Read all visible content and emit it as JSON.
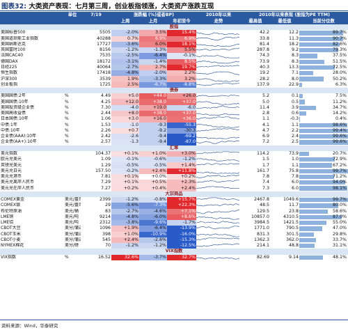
{
  "title": {
    "fig": "图表32:",
    "text": "大类资产表现：七月第三周，创业板指领涨，大类资产涨跌互现"
  },
  "header": {
    "unit": "单位",
    "date": "7/19",
    "chg_group": "涨跌幅 (%)或者BP)",
    "range_group": "2010年以来",
    "val_group": "2010年以来表现 (股指为PE TTM)",
    "last_week": "上周",
    "last_month": "上月",
    "ytd": "年初至今",
    "trend": "走势",
    "high": "最高值",
    "low": "最低值",
    "pct": "当前分位数"
  },
  "sections": [
    {
      "title": "股指",
      "rows": [
        {
          "name": "美国标普500",
          "unit": "",
          "value": "5505",
          "w": "-2.0%",
          "m": "3.5%",
          "y": "15.4%",
          "hi": "42.2",
          "lo": "12.2",
          "pct": "89.7%"
        },
        {
          "name": "美国道琼斯工业指数",
          "unit": "",
          "value": "40288",
          "w": "0.7%",
          "m": "6.9%",
          "y": "6.9%",
          "hi": "33.8",
          "lo": "11.3",
          "pct": "90.7%"
        },
        {
          "name": "美国纳斯达克",
          "unit": "",
          "value": "17727",
          "w": "-3.6%",
          "m": "6.0%",
          "y": "18.1%",
          "hi": "81.4",
          "lo": "18.2",
          "pct": "82.6%"
        },
        {
          "name": "英国富时100",
          "unit": "",
          "value": "8156",
          "y": "5.5%",
          "w": "-1.2%",
          "m": "-1.3%",
          "hi": "287.8",
          "lo": "9.2",
          "pct": "79.3%"
        },
        {
          "name": "法国CAC40",
          "unit": "",
          "value": "7535",
          "w": "-2.5%",
          "m": "-6.4%",
          "y": "-0.1%",
          "hi": "74.3",
          "lo": "8.3",
          "pct": "37.5%"
        },
        {
          "name": "德国DAX",
          "unit": "",
          "value": "18172",
          "w": "-3.1%",
          "m": "-1.4%",
          "y": "8.5%",
          "hi": "73.9",
          "lo": "8.3",
          "pct": "51.5%"
        },
        {
          "name": "日经225",
          "unit": "",
          "value": "40064",
          "w": "-2.7%",
          "m": "2.7%",
          "y": "19.7%",
          "hi": "40.3",
          "lo": "13.3",
          "pct": "72.5%"
        },
        {
          "name": "恒生指数",
          "unit": "",
          "value": "17418",
          "w": "-4.8%",
          "m": "-2.0%",
          "y": "2.2%",
          "hi": "19.2",
          "lo": "7.1",
          "pct": "28.0%"
        },
        {
          "name": "沪深300",
          "unit": "",
          "value": "3539",
          "w": "1.9%",
          "m": "-3.3%",
          "y": "3.2%",
          "hi": "28.2",
          "lo": "8.0",
          "pct": "50.2%"
        },
        {
          "name": "创业板指",
          "unit": "",
          "value": "1725",
          "w": "2.5%",
          "m": "-6.7%",
          "y": "-8.8%",
          "hi": "137.9",
          "lo": "22.9",
          "pct": "6.3%"
        }
      ]
    },
    {
      "title": "债券",
      "rows": [
        {
          "name": "美国国债:2年",
          "unit": "%",
          "value": "4.49",
          "w": "+5.0",
          "m": "+44.0",
          "y": "+26.0",
          "hi": "5.2",
          "lo": "0.1",
          "pct": "7.5%"
        },
        {
          "name": "美国国债:10年",
          "unit": "%",
          "value": "4.25",
          "w": "+12.0",
          "m": "+38.0",
          "y": "+37.0",
          "hi": "5.0",
          "lo": "0.5",
          "pct": "11.2%"
        },
        {
          "name": "美国投资级企业债",
          "unit": "%",
          "value": "7.30",
          "w": "-4.0",
          "m": "+19.0",
          "y": "-6.0",
          "hi": "11.4",
          "lo": "3.9",
          "pct": "34.7%"
        },
        {
          "name": "美国高收益债",
          "unit": "%",
          "value": "2.44",
          "w": "+8.0",
          "m": "+38.0",
          "y": "+37.0",
          "hi": "2.8",
          "lo": "0.6",
          "pct": "14.2%"
        },
        {
          "name": "日本国债:10年",
          "unit": "%",
          "value": "1.06",
          "w": "+3.0",
          "m": "+16.0",
          "y": "+36.0",
          "hi": "1.1",
          "lo": "-0.3",
          "pct": "0.4%"
        },
        {
          "name": "中债:1年",
          "unit": "%",
          "value": "1.53",
          "w": "-1.0",
          "m": "-9.3",
          "y": "-55.3",
          "hi": "4.1",
          "lo": "1.1",
          "pct": "98.6%"
        },
        {
          "name": "中债:10年",
          "unit": "%",
          "value": "2.26",
          "w": "+0.7",
          "m": "-9.2",
          "y": "-30.3",
          "hi": "4.7",
          "lo": "2.2",
          "pct": "99.4%"
        },
        {
          "name": "企业债(AAA):10年",
          "unit": "%",
          "value": "2.42",
          "w": "-2.6",
          "m": "-9.4",
          "y": "-69.2",
          "hi": "6.9",
          "lo": "2.4",
          "pct": "99.6%"
        },
        {
          "name": "企业债(AA+):10年",
          "unit": "%",
          "value": "2.57",
          "w": "-1.3",
          "m": "-9.4",
          "y": "-87.0",
          "hi": "7.2",
          "lo": "2.5",
          "pct": "99.6%"
        }
      ]
    },
    {
      "title": "汇率",
      "rows": [
        {
          "name": "美元指数",
          "unit": "",
          "value": "104.37",
          "w": "+0.1%",
          "m": "+1.0%",
          "y": "+3.0%",
          "hi": "114.2",
          "lo": "73.9",
          "pct": "20.7%"
        },
        {
          "name": "欧元兑美元",
          "unit": "",
          "value": "1.09",
          "w": "-0.1%",
          "m": "-0.6%",
          "y": "-1.2%",
          "hi": "1.5",
          "lo": "1.0",
          "pct": "72.9%"
        },
        {
          "name": "英镑兑美元",
          "unit": "",
          "value": "1.29",
          "w": "-0.5%",
          "m": "-0.5%",
          "y": "+1.4%",
          "hi": "1.7",
          "lo": "1.1",
          "pct": "67.2%"
        },
        {
          "name": "美元兑日元",
          "unit": "",
          "value": "157.50",
          "w": "-0.2%",
          "m": "+2.4%",
          "y": "+11.8%",
          "hi": "161.7",
          "lo": "75.8",
          "pct": "99.7%"
        },
        {
          "name": "美元兑港币",
          "unit": "",
          "value": "7.81",
          "w": "+0.1%",
          "m": "+0.0%",
          "y": "+0.2%",
          "hi": "7.8",
          "lo": "7.8",
          "pct": "71.2%"
        },
        {
          "name": "美元兑离岸人民币",
          "unit": "",
          "value": "7.29",
          "w": "+0.1%",
          "m": "+0.5%",
          "y": "+2.3%",
          "hi": "7.4",
          "lo": "6.0",
          "pct": "94.0%"
        },
        {
          "name": "美元兑在岸人民币",
          "unit": "",
          "value": "7.27",
          "w": "+0.2%",
          "m": "+0.4%",
          "y": "+2.4%",
          "hi": "7.3",
          "lo": "6.0",
          "pct": "98.1%"
        }
      ]
    },
    {
      "title": "大宗商品",
      "rows": [
        {
          "name": "COMEX黄金",
          "unit": "美元/盎司",
          "value": "2399",
          "w": "-1.2%",
          "m": "-0.8%",
          "y": "+15.7%",
          "hi": "2467.8",
          "lo": "1049.6",
          "pct": "99.7%"
        },
        {
          "name": "COMEX银",
          "unit": "美元/盎司",
          "value": "29",
          "w": "-5.6%",
          "m": "-7.3%",
          "y": "+22.3%",
          "hi": "48.5",
          "lo": "11.7",
          "pct": "80.0%"
        },
        {
          "name": "布伦特原油",
          "unit": "美元/桶",
          "value": "83",
          "w": "-2.7%",
          "m": "-4.6%",
          "y": "+7.1%",
          "hi": "129.5",
          "lo": "23.8",
          "pct": "58.6%"
        },
        {
          "name": "LME铜",
          "unit": "美元/吨",
          "value": "9214",
          "w": "-4.8%",
          "m": "-6.0%",
          "y": "+8.6%",
          "hi": "10857.0",
          "lo": "4310.5",
          "pct": "87.0%"
        },
        {
          "name": "LME铝",
          "unit": "美元/吨",
          "value": "2312",
          "w": "-3.8%",
          "m": "-9.6%",
          "y": "-1.7%",
          "hi": "3984.5",
          "lo": "1421.5",
          "pct": "55.0%"
        },
        {
          "name": "CBOT大豆",
          "unit": "美分/蒲式耳",
          "value": "1096",
          "w": "+1.9%",
          "m": "-6.4%",
          "y": "-13.9%",
          "hi": "1771.0",
          "lo": "790.5",
          "pct": "47.0%"
        },
        {
          "name": "CBOT玉米",
          "unit": "美分/蒲式耳",
          "value": "398",
          "w": "+1.0%",
          "m": "-10.9%",
          "y": "-16.0%",
          "hi": "831.3",
          "lo": "301.5",
          "pct": "29.8%"
        },
        {
          "name": "CBOT小麦",
          "unit": "美分/蒲式耳",
          "value": "545",
          "w": "+2.4%",
          "m": "-2.6%",
          "y": "-15.3%",
          "hi": "1362.3",
          "lo": "362.0",
          "pct": "33.7%"
        },
        {
          "name": "NYMEX棉花",
          "unit": "美分/磅",
          "value": "70",
          "w": "-1.2%",
          "m": "-1.2%",
          "y": "-12.5%",
          "hi": "214.1",
          "lo": "48.8",
          "pct": "31.1%"
        }
      ]
    },
    {
      "title": "VIX指数",
      "rows": [
        {
          "name": "VIX指数",
          "unit": "%",
          "value": "16.52",
          "w": "32.6%",
          "m": "-3.7%",
          "y": "32.7%",
          "hi": "82.69",
          "lo": "9.14",
          "pct": "48.1%"
        }
      ]
    }
  ],
  "source": "资料来源：Wind，华泰研究",
  "colors": {
    "header_bg": "#2c5aa0",
    "section_bg": "#dbe6f4",
    "section_text": "#8b1a1a",
    "pct_bar": "#8eb2dc",
    "sparkline": "#3a5f9a"
  }
}
